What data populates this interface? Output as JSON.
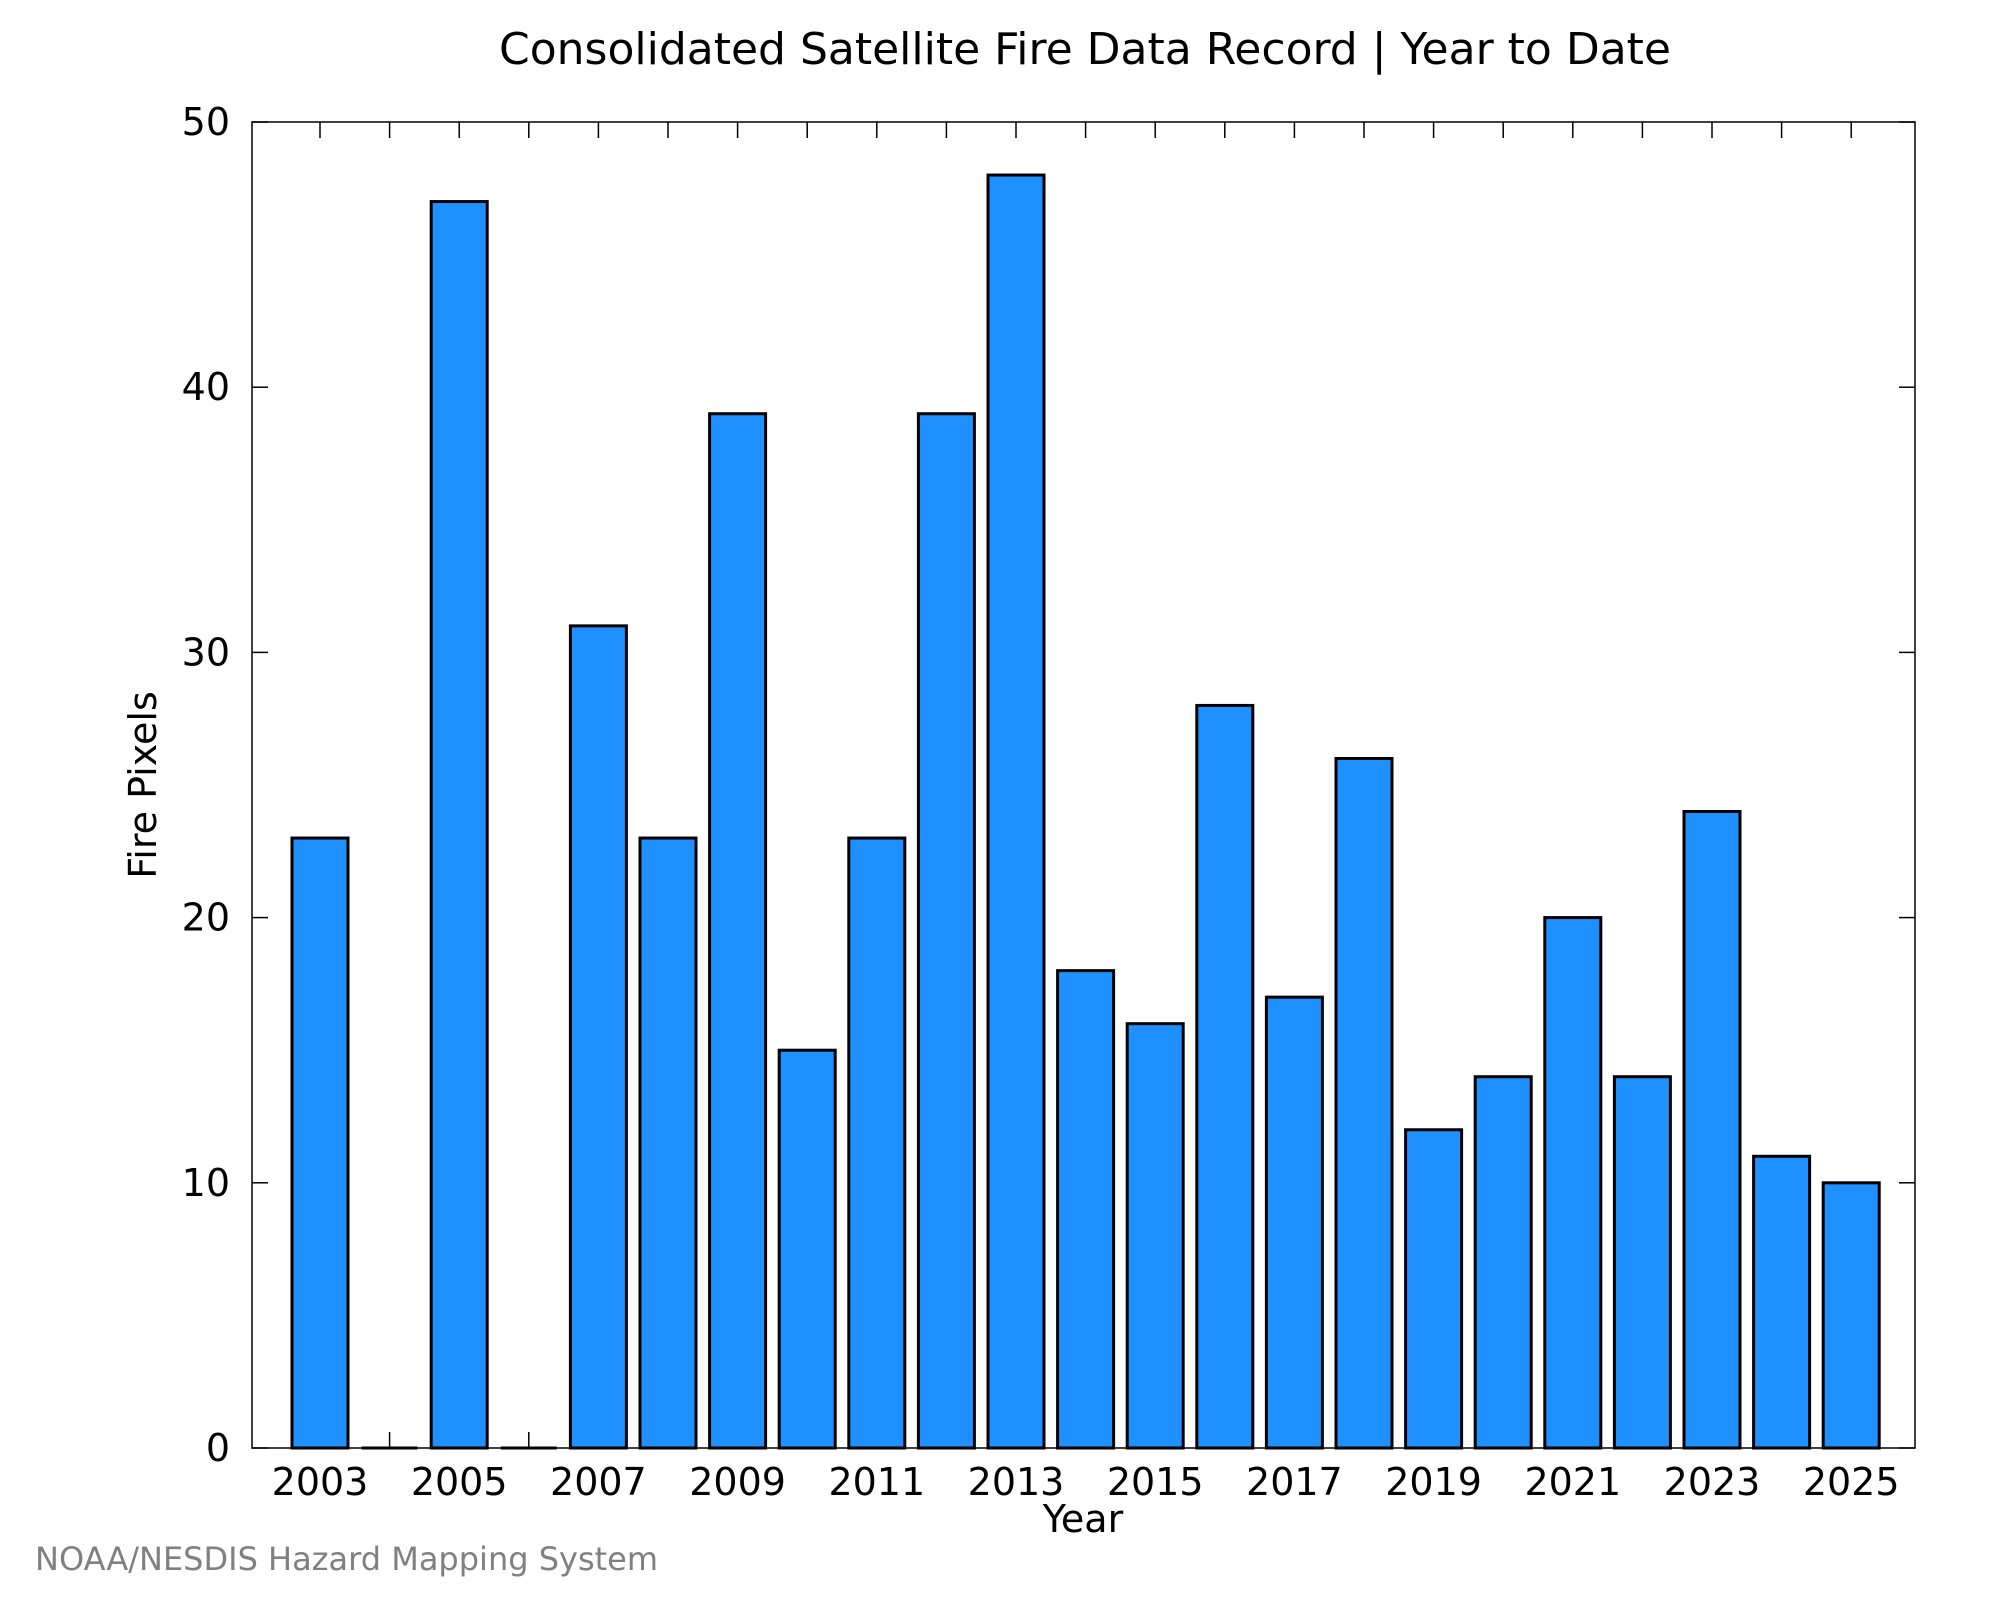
{
  "chart_data": {
    "type": "bar",
    "title": "Consolidated Satellite Fire Data Record | Year to Date",
    "xlabel": "Year",
    "ylabel": "Fire Pixels",
    "categories": [
      "2003",
      "2004",
      "2005",
      "2006",
      "2007",
      "2008",
      "2009",
      "2010",
      "2011",
      "2012",
      "2013",
      "2014",
      "2015",
      "2016",
      "2017",
      "2018",
      "2019",
      "2020",
      "2021",
      "2022",
      "2023",
      "2024",
      "2025"
    ],
    "values": [
      23,
      0,
      47,
      0,
      31,
      23,
      39,
      15,
      23,
      39,
      48,
      18,
      16,
      28,
      17,
      26,
      12,
      14,
      20,
      14,
      24,
      11,
      10
    ],
    "x_tick_labels": [
      "2003",
      "2005",
      "2007",
      "2009",
      "2011",
      "2013",
      "2015",
      "2017",
      "2019",
      "2021",
      "2023",
      "2025"
    ],
    "y_ticks": [
      0,
      10,
      20,
      30,
      40,
      50
    ],
    "ylim": [
      0,
      50
    ],
    "grid": false,
    "bar_color": "#1e90ff",
    "bar_edge_color": "#000000"
  },
  "credit": "NOAA/NESDIS Hazard Mapping System"
}
